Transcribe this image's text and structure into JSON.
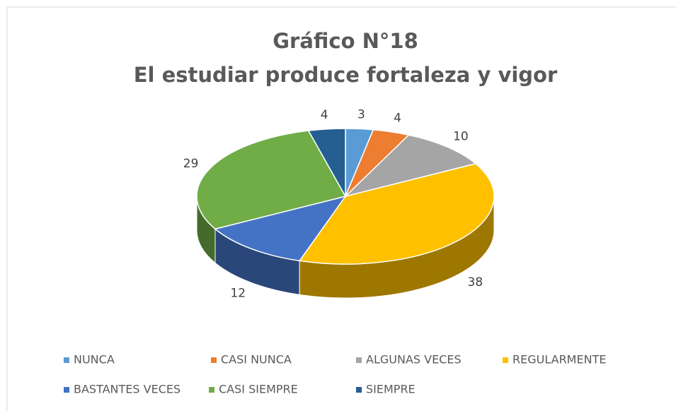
{
  "chart_data": {
    "type": "pie",
    "title": "Gráfico N°18",
    "subtitle": "El estudiar produce fortaleza y vigor",
    "categories": [
      "NUNCA",
      "CASI NUNCA",
      "ALGUNAS VECES",
      "REGULARMENTE",
      "BASTANTES VECES",
      "CASI SIEMPRE",
      "SIEMPRE"
    ],
    "values": [
      3,
      4,
      10,
      38,
      12,
      29,
      4
    ],
    "colors": [
      "#5b9bd5",
      "#ed7d31",
      "#a5a5a5",
      "#ffc000",
      "#4472c4",
      "#70ad47",
      "#255e91"
    ],
    "legend": "bottom"
  }
}
